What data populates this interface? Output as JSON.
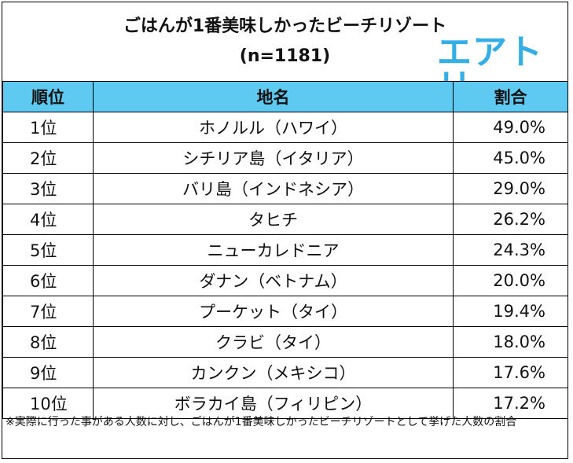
{
  "header": {
    "title": "ごはんが1番美味しかったビーチリゾート",
    "sample": "(n=1181)",
    "logo": "エアトリ"
  },
  "chart_data": {
    "type": "table",
    "columns": [
      "順位",
      "地名",
      "割合"
    ],
    "rows": [
      [
        "1位",
        "ホノルル（ハワイ）",
        "49.0%"
      ],
      [
        "2位",
        "シチリア島（イタリア）",
        "45.0%"
      ],
      [
        "3位",
        "バリ島（インドネシア）",
        "29.0%"
      ],
      [
        "4位",
        "タヒチ",
        "26.2%"
      ],
      [
        "5位",
        "ニューカレドニア",
        "24.3%"
      ],
      [
        "6位",
        "ダナン（ベトナム）",
        "20.0%"
      ],
      [
        "7位",
        "プーケット（タイ）",
        "19.4%"
      ],
      [
        "8位",
        "クラビ（タイ）",
        "18.0%"
      ],
      [
        "9位",
        "カンクン（メキシコ）",
        "17.6%"
      ],
      [
        "10位",
        "ボラカイ島（フィリピン）",
        "17.2%"
      ]
    ]
  },
  "footnote": "※実際に行った事がある人数に対し、ごはんが1番美味しかったビーチリゾートとして挙げた人数の割合",
  "colors": {
    "header_fill": "#5ecaf2",
    "logo": "#33aee6"
  }
}
